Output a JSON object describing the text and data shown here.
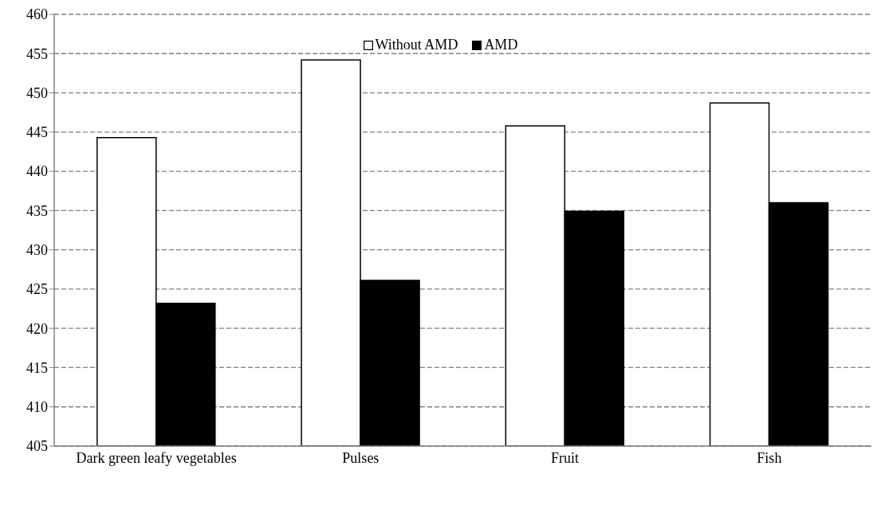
{
  "chart_data": {
    "type": "bar",
    "categories": [
      "Dark green leafy vegetables",
      "Pulses",
      "Fruit",
      "Fish"
    ],
    "series": [
      {
        "name": "Without AMD",
        "color": "#ffffff",
        "values": [
          444.3,
          454.2,
          445.8,
          448.7
        ]
      },
      {
        "name": "AMD",
        "color": "#000000",
        "values": [
          423.2,
          426.1,
          434.9,
          436.0
        ]
      }
    ],
    "ylim": [
      405,
      460
    ],
    "yticks": [
      405,
      410,
      415,
      420,
      425,
      430,
      435,
      440,
      445,
      450,
      455,
      460
    ],
    "grid": "y",
    "legend": "top"
  }
}
